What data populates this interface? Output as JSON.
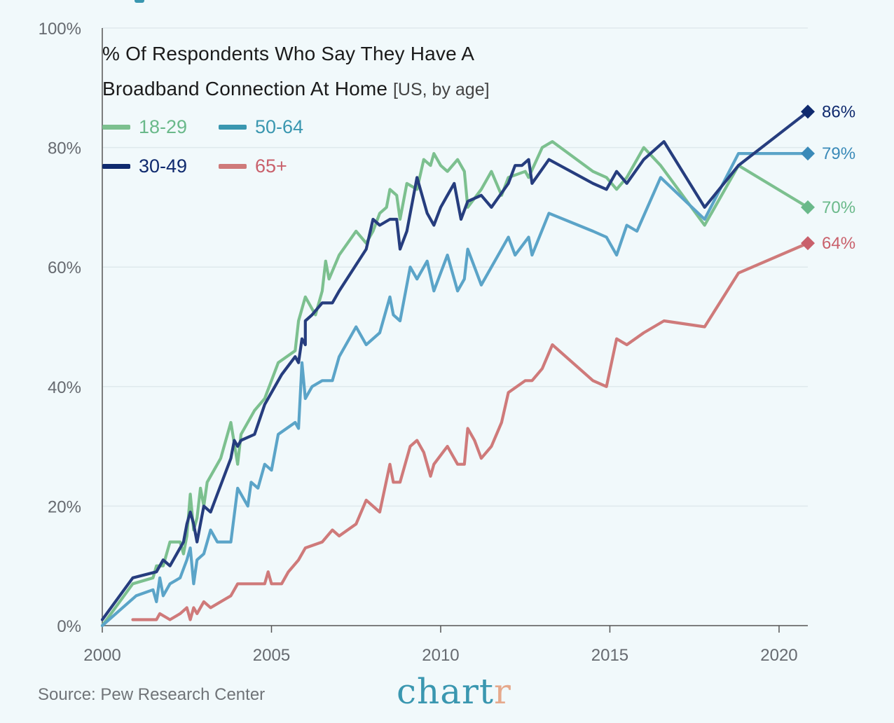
{
  "chart_data": {
    "type": "line",
    "title": "% Of Respondents Who Say They Have A",
    "title_line2": "Broadband Connection At Home",
    "subtitle": "[US, by age]",
    "xlim": [
      2000,
      2020.85
    ],
    "ylim": [
      0,
      100
    ],
    "x_ticks": [
      2000,
      2005,
      2010,
      2015,
      2020
    ],
    "x_tick_labels": [
      "2000",
      "2005",
      "2010",
      "2015",
      "2020"
    ],
    "y_ticks": [
      0,
      20,
      40,
      60,
      80,
      100
    ],
    "y_tick_labels": [
      "0%",
      "20%",
      "40%",
      "60%",
      "80%",
      "100%"
    ],
    "grid": "horizontal",
    "legend_position": "top-left",
    "series": [
      {
        "name": "18-29",
        "color": "#7cc08f",
        "end_label": "70%",
        "points": [
          [
            2000,
            0
          ],
          [
            2000.9,
            7
          ],
          [
            2001.5,
            8
          ],
          [
            2001.6,
            10
          ],
          [
            2001.8,
            10
          ],
          [
            2002,
            14
          ],
          [
            2002.3,
            14
          ],
          [
            2002.4,
            12
          ],
          [
            2002.5,
            15
          ],
          [
            2002.6,
            22
          ],
          [
            2002.7,
            16
          ],
          [
            2002.8,
            18
          ],
          [
            2002.9,
            23
          ],
          [
            2003,
            20
          ],
          [
            2003.1,
            24
          ],
          [
            2003.5,
            28
          ],
          [
            2003.8,
            34
          ],
          [
            2004,
            27
          ],
          [
            2004.1,
            32
          ],
          [
            2004.5,
            36
          ],
          [
            2004.8,
            38
          ],
          [
            2005.2,
            44
          ],
          [
            2005.7,
            46
          ],
          [
            2005.8,
            51
          ],
          [
            2006,
            55
          ],
          [
            2006.2,
            53
          ],
          [
            2006.3,
            52
          ],
          [
            2006.5,
            56
          ],
          [
            2006.6,
            61
          ],
          [
            2006.7,
            58
          ],
          [
            2007,
            62
          ],
          [
            2007.5,
            66
          ],
          [
            2007.8,
            64
          ],
          [
            2008,
            66
          ],
          [
            2008.2,
            69
          ],
          [
            2008.4,
            70
          ],
          [
            2008.5,
            73
          ],
          [
            2008.7,
            72
          ],
          [
            2008.8,
            68
          ],
          [
            2009,
            74
          ],
          [
            2009.3,
            73
          ],
          [
            2009.5,
            78
          ],
          [
            2009.7,
            77
          ],
          [
            2009.8,
            79
          ],
          [
            2010,
            77
          ],
          [
            2010.2,
            76
          ],
          [
            2010.5,
            78
          ],
          [
            2010.7,
            76
          ],
          [
            2010.8,
            70
          ],
          [
            2011.2,
            73
          ],
          [
            2011.5,
            76
          ],
          [
            2011.8,
            72
          ],
          [
            2012,
            75
          ],
          [
            2012.5,
            76
          ],
          [
            2012.6,
            75
          ],
          [
            2013,
            80
          ],
          [
            2013.3,
            81
          ],
          [
            2014.5,
            76
          ],
          [
            2014.9,
            75
          ],
          [
            2015.2,
            73
          ],
          [
            2015.5,
            75
          ],
          [
            2016,
            80
          ],
          [
            2016.5,
            77
          ],
          [
            2017.8,
            67
          ],
          [
            2018.8,
            77
          ],
          [
            2020.85,
            70
          ]
        ]
      },
      {
        "name": "30-49",
        "color": "#263d7e",
        "end_label": "86%",
        "points": [
          [
            2000,
            1
          ],
          [
            2000.9,
            8
          ],
          [
            2001.6,
            9
          ],
          [
            2001.8,
            11
          ],
          [
            2002,
            10
          ],
          [
            2002.3,
            13
          ],
          [
            2002.4,
            14
          ],
          [
            2002.5,
            17
          ],
          [
            2002.6,
            19
          ],
          [
            2002.7,
            17
          ],
          [
            2002.8,
            14
          ],
          [
            2003,
            20
          ],
          [
            2003.2,
            19
          ],
          [
            2003.4,
            22
          ],
          [
            2003.8,
            28
          ],
          [
            2003.9,
            31
          ],
          [
            2004,
            30
          ],
          [
            2004.1,
            31
          ],
          [
            2004.5,
            32
          ],
          [
            2004.8,
            37
          ],
          [
            2005,
            39
          ],
          [
            2005.3,
            42
          ],
          [
            2005.7,
            45
          ],
          [
            2005.8,
            44
          ],
          [
            2005.9,
            48
          ],
          [
            2006,
            47
          ],
          [
            2006,
            51
          ],
          [
            2006.2,
            52
          ],
          [
            2006.5,
            54
          ],
          [
            2006.8,
            54
          ],
          [
            2007,
            56
          ],
          [
            2007.8,
            63
          ],
          [
            2008,
            68
          ],
          [
            2008.2,
            67
          ],
          [
            2008.5,
            68
          ],
          [
            2008.7,
            68
          ],
          [
            2008.8,
            63
          ],
          [
            2009,
            66
          ],
          [
            2009.3,
            75
          ],
          [
            2009.6,
            69
          ],
          [
            2009.8,
            67
          ],
          [
            2010,
            70
          ],
          [
            2010.2,
            72
          ],
          [
            2010.4,
            74
          ],
          [
            2010.6,
            68
          ],
          [
            2010.8,
            71
          ],
          [
            2011.2,
            72
          ],
          [
            2011.5,
            70
          ],
          [
            2012,
            74
          ],
          [
            2012.2,
            77
          ],
          [
            2012.4,
            77
          ],
          [
            2012.6,
            78
          ],
          [
            2012.7,
            74
          ],
          [
            2013.2,
            78
          ],
          [
            2014.5,
            74
          ],
          [
            2014.9,
            73
          ],
          [
            2015.2,
            76
          ],
          [
            2015.5,
            74
          ],
          [
            2016,
            78
          ],
          [
            2016.6,
            81
          ],
          [
            2017.8,
            70
          ],
          [
            2018.8,
            77
          ],
          [
            2020.85,
            86
          ]
        ]
      },
      {
        "name": "50-64",
        "color": "#5ba4c8",
        "end_label": "79%",
        "points": [
          [
            2000,
            0
          ],
          [
            2001,
            5
          ],
          [
            2001.5,
            6
          ],
          [
            2001.6,
            4
          ],
          [
            2001.7,
            8
          ],
          [
            2001.8,
            5
          ],
          [
            2002,
            7
          ],
          [
            2002.3,
            8
          ],
          [
            2002.5,
            11
          ],
          [
            2002.6,
            13
          ],
          [
            2002.7,
            7
          ],
          [
            2002.8,
            11
          ],
          [
            2003,
            12
          ],
          [
            2003.2,
            16
          ],
          [
            2003.4,
            14
          ],
          [
            2003.8,
            14
          ],
          [
            2004,
            23
          ],
          [
            2004.3,
            20
          ],
          [
            2004.4,
            24
          ],
          [
            2004.6,
            23
          ],
          [
            2004.8,
            27
          ],
          [
            2005,
            26
          ],
          [
            2005.2,
            32
          ],
          [
            2005.7,
            34
          ],
          [
            2005.8,
            33
          ],
          [
            2005.9,
            44
          ],
          [
            2006,
            38
          ],
          [
            2006.2,
            40
          ],
          [
            2006.5,
            41
          ],
          [
            2006.8,
            41
          ],
          [
            2007,
            45
          ],
          [
            2007.5,
            50
          ],
          [
            2007.8,
            47
          ],
          [
            2008.2,
            49
          ],
          [
            2008.5,
            55
          ],
          [
            2008.6,
            52
          ],
          [
            2008.8,
            51
          ],
          [
            2009.1,
            60
          ],
          [
            2009.3,
            58
          ],
          [
            2009.6,
            61
          ],
          [
            2009.8,
            56
          ],
          [
            2010.2,
            62
          ],
          [
            2010.5,
            56
          ],
          [
            2010.7,
            58
          ],
          [
            2010.8,
            63
          ],
          [
            2011,
            60
          ],
          [
            2011.2,
            57
          ],
          [
            2011.5,
            60
          ],
          [
            2011.8,
            63
          ],
          [
            2012,
            65
          ],
          [
            2012.2,
            62
          ],
          [
            2012.6,
            65
          ],
          [
            2012.7,
            62
          ],
          [
            2013.2,
            69
          ],
          [
            2014.5,
            66
          ],
          [
            2014.9,
            65
          ],
          [
            2015.2,
            62
          ],
          [
            2015.5,
            67
          ],
          [
            2015.8,
            66
          ],
          [
            2016.5,
            75
          ],
          [
            2017.8,
            68
          ],
          [
            2018.8,
            79
          ],
          [
            2020.85,
            79
          ]
        ]
      },
      {
        "name": "65+",
        "color": "#cf7a7a",
        "end_label": "64%",
        "points": [
          [
            2000.9,
            1
          ],
          [
            2001.6,
            1
          ],
          [
            2001.7,
            2
          ],
          [
            2002,
            1
          ],
          [
            2002.3,
            2
          ],
          [
            2002.5,
            3
          ],
          [
            2002.6,
            1
          ],
          [
            2002.7,
            3
          ],
          [
            2002.8,
            2
          ],
          [
            2003,
            4
          ],
          [
            2003.2,
            3
          ],
          [
            2003.5,
            4
          ],
          [
            2003.8,
            5
          ],
          [
            2004,
            7
          ],
          [
            2004.5,
            7
          ],
          [
            2004.8,
            7
          ],
          [
            2004.9,
            9
          ],
          [
            2005,
            7
          ],
          [
            2005.3,
            7
          ],
          [
            2005.5,
            9
          ],
          [
            2005.8,
            11
          ],
          [
            2006,
            13
          ],
          [
            2006.5,
            14
          ],
          [
            2006.8,
            16
          ],
          [
            2007,
            15
          ],
          [
            2007.5,
            17
          ],
          [
            2007.8,
            21
          ],
          [
            2008.2,
            19
          ],
          [
            2008.5,
            27
          ],
          [
            2008.6,
            24
          ],
          [
            2008.8,
            24
          ],
          [
            2009.1,
            30
          ],
          [
            2009.3,
            31
          ],
          [
            2009.5,
            29
          ],
          [
            2009.7,
            25
          ],
          [
            2009.8,
            27
          ],
          [
            2010.2,
            30
          ],
          [
            2010.5,
            27
          ],
          [
            2010.7,
            27
          ],
          [
            2010.8,
            33
          ],
          [
            2011,
            31
          ],
          [
            2011.2,
            28
          ],
          [
            2011.5,
            30
          ],
          [
            2011.8,
            34
          ],
          [
            2012,
            39
          ],
          [
            2012.5,
            41
          ],
          [
            2012.7,
            41
          ],
          [
            2013,
            43
          ],
          [
            2013.3,
            47
          ],
          [
            2014.5,
            41
          ],
          [
            2014.9,
            40
          ],
          [
            2015.2,
            48
          ],
          [
            2015.5,
            47
          ],
          [
            2016,
            49
          ],
          [
            2016.6,
            51
          ],
          [
            2017.8,
            50
          ],
          [
            2018.8,
            59
          ],
          [
            2020.85,
            64
          ]
        ]
      }
    ],
    "end_markers": [
      {
        "series": "30-49",
        "value": 86,
        "color": "#0f2a6e",
        "label": "86%"
      },
      {
        "series": "50-64",
        "value": 79,
        "color": "#3a8ab8",
        "label": "79%"
      },
      {
        "series": "18-29",
        "value": 70,
        "color": "#6ab98a",
        "label": "70%"
      },
      {
        "series": "65+",
        "value": 64,
        "color": "#c9606b",
        "label": "64%"
      }
    ]
  },
  "legend": [
    {
      "label": "18-29",
      "color": "#7cc08f"
    },
    {
      "label": "50-64",
      "color": "#3a97b0"
    },
    {
      "label": "30-49",
      "color": "#0f2a6e"
    },
    {
      "label": "65+",
      "color": "#cf7a7a"
    }
  ],
  "source": "Source: Pew Research Center",
  "brand": {
    "main": "chart",
    "accent": "r"
  }
}
